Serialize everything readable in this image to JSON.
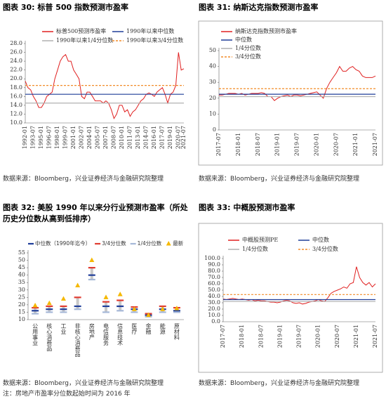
{
  "chart_data": [
    {
      "type": "line",
      "title": "图表 30:  标普 500 指数预测市盈率",
      "source": "数据来源：Bloomberg，兴业证券经济与金融研究院整理",
      "categories": [
        "1992-01",
        null,
        null,
        "1993-07",
        null,
        null,
        "1995-01",
        null,
        null,
        "1996-07",
        null,
        null,
        "1998-01",
        null,
        null,
        "1999-07",
        null,
        null,
        "2001-01",
        null,
        null,
        "2002-07",
        null,
        null,
        "2004-01",
        null,
        null,
        "2005-07",
        null,
        null,
        "2007-01",
        null,
        null,
        "2008-07",
        null,
        null,
        "2010-01",
        null,
        null,
        "2011-07",
        null,
        null,
        "2013-01",
        null,
        null,
        "2014-07",
        null,
        null,
        "2016-01",
        null,
        null,
        "2017-07",
        null,
        null,
        "2019-01",
        null,
        null,
        "2020-07",
        null,
        "2021-07"
      ],
      "series": [
        {
          "name": "标普500预测市盈率",
          "color": "#e02020",
          "values": [
            19.5,
            18,
            17.5,
            16,
            15,
            13.5,
            13.5,
            14.5,
            16,
            16.5,
            17,
            20,
            22,
            24,
            25,
            25.5,
            24,
            24,
            22,
            21,
            20,
            16,
            15.5,
            17,
            17,
            16,
            15,
            15,
            15,
            14.5,
            15,
            14.5,
            13,
            11,
            12,
            14,
            14,
            12.5,
            13,
            11.5,
            12.5,
            13,
            14,
            15,
            15.5,
            16.5,
            16.8,
            16.5,
            16,
            17,
            17.5,
            18,
            16.5,
            14.5,
            16.5,
            17,
            18.5,
            26,
            22,
            22.3
          ]
        }
      ],
      "reference_lines": [
        {
          "name": "1990年以来中位数",
          "color": "#1f3d99",
          "value": 16.5,
          "style": "solid"
        },
        {
          "name": "1990年以来1/4分位数",
          "color": "#b0b0b0",
          "value": 14.5,
          "style": "solid"
        },
        {
          "name": "1990年以来3/4分位数",
          "color": "#f28c28",
          "value": 18.5,
          "style": "dashed"
        }
      ],
      "ylim": [
        10,
        28
      ],
      "yticks": [
        {
          "value": 10,
          "label": "10.0"
        },
        {
          "value": 12,
          "label": "12.0"
        },
        {
          "value": 14,
          "label": "14.0"
        },
        {
          "value": 16,
          "label": "16.0"
        },
        {
          "value": 18,
          "label": "18.0"
        },
        {
          "value": 20,
          "label": "20.0"
        },
        {
          "value": 22,
          "label": "22.0"
        },
        {
          "value": 24,
          "label": "24.0"
        },
        {
          "value": 26,
          "label": "26.0"
        },
        {
          "value": 28,
          "label": "28.0"
        }
      ]
    },
    {
      "type": "line",
      "title": "图表 31:  纳斯达克指数预测市盈率",
      "source": "数据来源：Bloomberg，兴业证券经济与金融研究院整理",
      "categories": [
        "2017-07",
        null,
        null,
        null,
        null,
        null,
        "2018-01",
        null,
        null,
        null,
        null,
        null,
        "2018-07",
        null,
        null,
        null,
        null,
        null,
        "2019-01",
        null,
        null,
        null,
        null,
        null,
        "2019-07",
        null,
        null,
        null,
        null,
        null,
        "2020-01",
        null,
        null,
        null,
        null,
        null,
        "2020-07",
        null,
        null,
        null,
        null,
        null,
        "2021-01",
        null,
        null,
        null,
        null,
        null,
        "2021-07"
      ],
      "series": [
        {
          "name": "纳斯达克指数预测市盈率",
          "color": "#e02020",
          "values": [
            22,
            22,
            22.5,
            23,
            23,
            23,
            22.5,
            23,
            22,
            22.5,
            23,
            23,
            23,
            23.5,
            23,
            21,
            21,
            18.5,
            20,
            21,
            21.5,
            22,
            21,
            22,
            22,
            21.5,
            22,
            22.5,
            23,
            23.5,
            24,
            22,
            20,
            26,
            30,
            33,
            36,
            40,
            37,
            37,
            39,
            40,
            38,
            37,
            34,
            33,
            33,
            33,
            34
          ]
        }
      ],
      "reference_lines": [
        {
          "name": "中位数",
          "color": "#1f3d99",
          "value": 22.5,
          "style": "solid"
        },
        {
          "name": "1/4分位数",
          "color": "#b0b0b0",
          "value": 21,
          "style": "solid"
        },
        {
          "name": "3/4分位数",
          "color": "#f28c28",
          "value": 26,
          "style": "dashed"
        }
      ],
      "ylim": [
        0,
        50
      ],
      "yticks": [
        0,
        10,
        20,
        30,
        40,
        50
      ]
    },
    {
      "type": "dot",
      "title": "图表 32:  美股 1990 年以来分行业预测市盈率（所处历史分位数从高到低排序）",
      "source": "数据来源：Bloomberg，兴业证券经济与金融研究院整理",
      "note": "注：房地产市盈率分位数起始时间为 2016 年",
      "categories": [
        "公用事业",
        "核心消费品",
        "工业",
        "非核心消费品",
        "房地产",
        "电信服务",
        "信息技术",
        "医疗",
        "金融",
        "能源",
        "原材料"
      ],
      "series": [
        {
          "name": "中位数（1990年迄今）",
          "color": "#1f3d99",
          "marker": "dash",
          "values": [
            16,
            17,
            17,
            19,
            40,
            19,
            19,
            17,
            13,
            17,
            16
          ]
        },
        {
          "name": "3/4分位数",
          "color": "#e03c31",
          "marker": "dash",
          "values": [
            18,
            19,
            19,
            25,
            45,
            22,
            23,
            18.5,
            14,
            19,
            18
          ]
        },
        {
          "name": "1/4分位数",
          "color": "#a6b8d8",
          "marker": "dash",
          "values": [
            14,
            15,
            15,
            17,
            37,
            15,
            16,
            15,
            12,
            15,
            15
          ]
        },
        {
          "name": "最新",
          "color": "#f5b800",
          "marker": "triangle",
          "values": [
            19.5,
            21,
            24,
            33,
            50,
            25,
            27,
            17,
            13,
            17,
            17.5
          ]
        }
      ],
      "range_bar_color": "#c8c8c8",
      "ylim": [
        10,
        55
      ],
      "yticks": [
        10,
        15,
        20,
        25,
        30,
        35,
        40,
        45,
        50,
        55
      ]
    },
    {
      "type": "line",
      "title": "图表 33:  中概股预测市盈率",
      "source": "数据来源：Bloomberg，兴业证券经济与金融研究院整理",
      "categories": [
        "2017-07",
        null,
        null,
        null,
        null,
        null,
        "2018-01",
        null,
        null,
        null,
        null,
        null,
        "2018-07",
        null,
        null,
        null,
        null,
        null,
        "2019-01",
        null,
        null,
        null,
        null,
        null,
        "2019-07",
        null,
        null,
        null,
        null,
        null,
        "2020-01",
        null,
        null,
        null,
        null,
        null,
        "2020-07",
        null,
        null,
        null,
        null,
        null,
        "2021-01",
        null,
        null,
        null,
        null,
        null,
        "2021-07"
      ],
      "series": [
        {
          "name": "中概股预测PE",
          "color": "#e02020",
          "values": [
            36,
            35,
            36,
            37,
            36,
            35,
            36,
            35,
            34,
            35,
            33,
            34,
            33,
            33,
            32,
            31,
            31,
            30,
            31,
            33,
            34,
            33,
            30,
            29,
            30,
            28,
            29,
            31,
            32,
            33,
            35,
            33,
            32,
            38,
            45,
            48,
            50,
            52,
            55,
            53,
            60,
            62,
            87,
            70,
            62,
            58,
            62,
            55,
            60
          ]
        }
      ],
      "reference_lines": [
        {
          "name": "中位数",
          "color": "#1f3d99",
          "value": 35,
          "style": "solid"
        },
        {
          "name": "1/4分位数",
          "color": "#b0b0b0",
          "value": 32,
          "style": "solid"
        },
        {
          "name": "3/4分位数",
          "color": "#f28c28",
          "value": 43,
          "style": "dashed"
        }
      ],
      "ylim": [
        0,
        100
      ],
      "yticks": [
        {
          "value": 0,
          "label": "0.0"
        },
        {
          "value": 10,
          "label": "10.0"
        },
        {
          "value": 20,
          "label": "20.0"
        },
        {
          "value": 30,
          "label": "30.0"
        },
        {
          "value": 40,
          "label": "40.0"
        },
        {
          "value": 50,
          "label": "50.0"
        },
        {
          "value": 60,
          "label": "60.0"
        },
        {
          "value": 70,
          "label": "70.0"
        },
        {
          "value": 80,
          "label": "80.0"
        },
        {
          "value": 90,
          "label": "90.0"
        },
        {
          "value": 100,
          "label": "100.0"
        }
      ]
    }
  ]
}
